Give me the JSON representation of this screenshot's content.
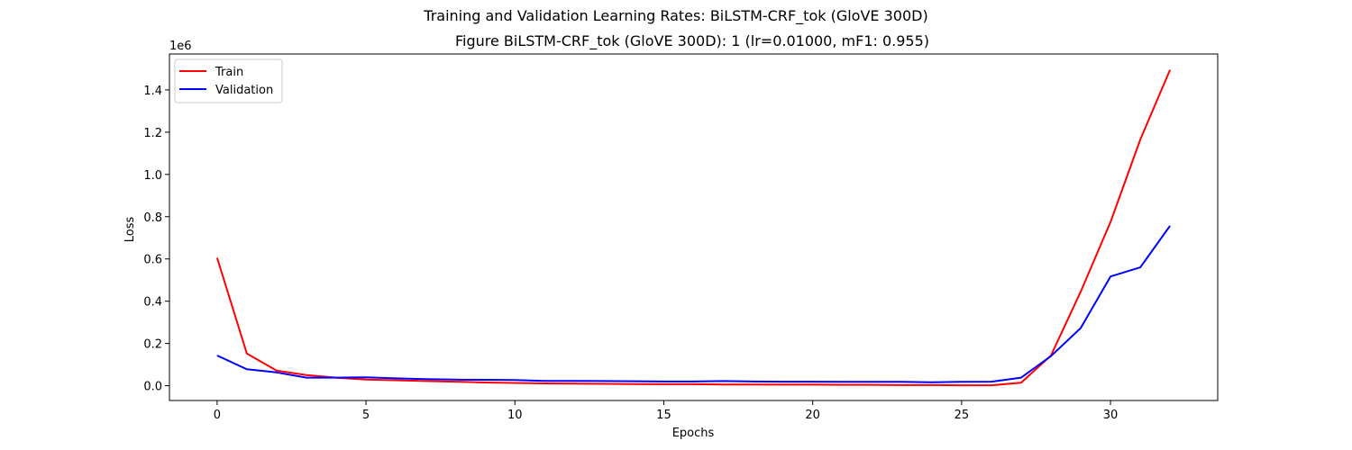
{
  "chart_data": {
    "type": "line",
    "suptitle": "Training and Validation Learning Rates: BiLSTM-CRF_tok (GloVE 300D)",
    "title": "Figure BiLSTM-CRF_tok (GloVE 300D): 1 (lr=0.01000, mF1: 0.955)",
    "xlabel": "Epochs",
    "ylabel": "Loss",
    "y_scale_label": "1e6",
    "xlim": [
      -1.6,
      33.6
    ],
    "ylim": [
      -70000,
      1570000
    ],
    "x_ticks": [
      0,
      5,
      10,
      15,
      20,
      25,
      30
    ],
    "x_tick_labels": [
      "0",
      "5",
      "10",
      "15",
      "20",
      "25",
      "30"
    ],
    "y_ticks": [
      0,
      200000,
      400000,
      600000,
      800000,
      1000000,
      1200000,
      1400000
    ],
    "y_tick_labels": [
      "0.0",
      "0.2",
      "0.4",
      "0.6",
      "0.8",
      "1.0",
      "1.2",
      "1.4"
    ],
    "grid": false,
    "legend_position": "top-left",
    "x": [
      0,
      1,
      2,
      3,
      4,
      5,
      6,
      7,
      8,
      9,
      10,
      11,
      12,
      13,
      14,
      15,
      16,
      17,
      18,
      19,
      20,
      21,
      22,
      23,
      24,
      25,
      26,
      27,
      28,
      29,
      30,
      31,
      32
    ],
    "series": [
      {
        "name": "Train",
        "color": "#ff0000",
        "values": [
          605000,
          152000,
          72000,
          50000,
          38000,
          29000,
          26000,
          22000,
          19000,
          15000,
          13000,
          11000,
          10000,
          9000,
          8000,
          7000,
          7000,
          6000,
          6000,
          5000,
          5000,
          4000,
          4000,
          3000,
          3000,
          2000,
          2000,
          14000,
          143000,
          445000,
          775000,
          1165000,
          1495000
        ]
      },
      {
        "name": "Validation",
        "color": "#0000ff",
        "values": [
          143000,
          78000,
          63000,
          38000,
          38000,
          40000,
          35000,
          31000,
          29000,
          28000,
          27000,
          23000,
          23000,
          22000,
          21000,
          20000,
          20000,
          22000,
          20000,
          19000,
          19000,
          18000,
          18000,
          18000,
          16000,
          18000,
          19000,
          38000,
          140000,
          273000,
          517000,
          560000,
          757000
        ]
      }
    ]
  }
}
